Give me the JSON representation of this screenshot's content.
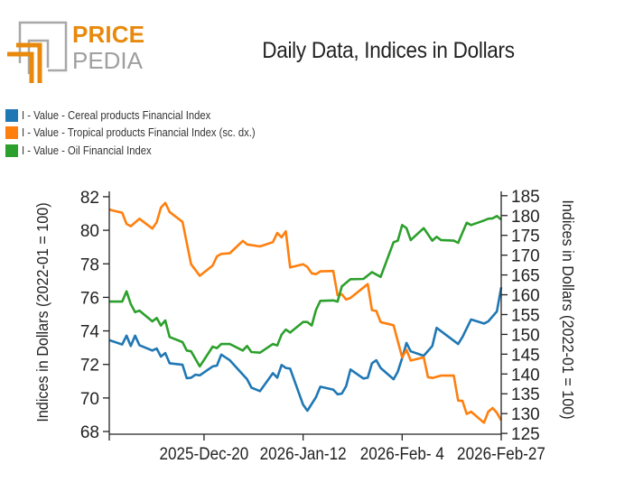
{
  "logo": {
    "text_top": "PRICE",
    "text_bottom": "PEDIA",
    "brand_color": "#E8890C",
    "gray": "#A0A0A0"
  },
  "chart_data": {
    "type": "line",
    "title": "Daily Data, Indices in Dollars",
    "ylabel_left": "Indices in Dollars (2022-01 = 100)",
    "ylabel_right": "Indices in Dollars (2022-01 = 100)",
    "xlabel": "",
    "xlim": [
      "2025-11-28",
      "2026-02-27"
    ],
    "x_ticks": [
      "2025-12-20",
      "2026-01-12",
      "2026-02-04",
      "2026-02-27"
    ],
    "x_tick_labels": [
      "2025-Dec-20",
      "2026-Jan-12",
      "2026-Feb- 4",
      "2026-Feb-27"
    ],
    "ylim_left": [
      67.84,
      82.32
    ],
    "ylim_right": [
      124.8,
      186.1
    ],
    "y_ticks_left": [
      "68",
      "70",
      "72",
      "74",
      "76",
      "78",
      "80",
      "82"
    ],
    "y_ticks_right": [
      "125",
      "130",
      "135",
      "140",
      "145",
      "150",
      "155",
      "160",
      "165",
      "170",
      "175",
      "180",
      "185"
    ],
    "grid": false,
    "legend_position": "top-left",
    "series": [
      {
        "name": "I - Value - Cereal products Financial Index",
        "axis": "left",
        "color": "#1F77B4",
        "points": [
          [
            "2025-11-28",
            73.45
          ],
          [
            "2025-12-01",
            73.19
          ],
          [
            "2025-12-02",
            73.72
          ],
          [
            "2025-12-03",
            73.1
          ],
          [
            "2025-12-04",
            73.72
          ],
          [
            "2025-12-05",
            73.15
          ],
          [
            "2025-12-08",
            72.83
          ],
          [
            "2025-12-09",
            72.95
          ],
          [
            "2025-12-10",
            72.47
          ],
          [
            "2025-12-11",
            72.68
          ],
          [
            "2025-12-12",
            72.07
          ],
          [
            "2025-12-15",
            71.98
          ],
          [
            "2025-12-16",
            71.18
          ],
          [
            "2025-12-17",
            71.21
          ],
          [
            "2025-12-18",
            71.39
          ],
          [
            "2025-12-19",
            71.35
          ],
          [
            "2025-12-22",
            71.88
          ],
          [
            "2025-12-23",
            71.93
          ],
          [
            "2025-12-24",
            72.59
          ],
          [
            "2025-12-26",
            72.25
          ],
          [
            "2025-12-30",
            71.12
          ],
          [
            "2025-12-31",
            70.62
          ],
          [
            "2026-01-02",
            70.41
          ],
          [
            "2026-01-05",
            71.48
          ],
          [
            "2026-01-06",
            71.21
          ],
          [
            "2026-01-07",
            71.97
          ],
          [
            "2026-01-08",
            71.79
          ],
          [
            "2026-01-09",
            71.75
          ],
          [
            "2026-01-12",
            69.6
          ],
          [
            "2026-01-13",
            69.24
          ],
          [
            "2026-01-15",
            70.05
          ],
          [
            "2026-01-16",
            70.67
          ],
          [
            "2026-01-19",
            70.5
          ],
          [
            "2026-01-20",
            70.22
          ],
          [
            "2026-01-21",
            70.26
          ],
          [
            "2026-01-22",
            70.71
          ],
          [
            "2026-01-23",
            71.7
          ],
          [
            "2026-01-26",
            71.16
          ],
          [
            "2026-01-27",
            71.21
          ],
          [
            "2026-01-28",
            72.07
          ],
          [
            "2026-01-29",
            72.25
          ],
          [
            "2026-01-30",
            71.79
          ],
          [
            "2026-02-02",
            71.12
          ],
          [
            "2026-02-03",
            71.57
          ],
          [
            "2026-02-04",
            72.38
          ],
          [
            "2026-02-05",
            73.28
          ],
          [
            "2026-02-06",
            72.78
          ],
          [
            "2026-02-09",
            72.52
          ],
          [
            "2026-02-11",
            73.1
          ],
          [
            "2026-02-12",
            74.18
          ],
          [
            "2026-02-17",
            73.22
          ],
          [
            "2026-02-18",
            73.64
          ],
          [
            "2026-02-20",
            74.68
          ],
          [
            "2026-02-23",
            74.44
          ],
          [
            "2026-02-24",
            74.57
          ],
          [
            "2026-02-26",
            75.16
          ],
          [
            "2026-02-27",
            76.6
          ]
        ]
      },
      {
        "name": "I - Value - Tropical products Financial Index (sc. dx.)",
        "axis": "right",
        "color": "#FF7F0E",
        "points": [
          [
            "2025-11-28",
            181.5
          ],
          [
            "2025-12-01",
            180.7
          ],
          [
            "2025-12-02",
            177.9
          ],
          [
            "2025-12-03",
            177.3
          ],
          [
            "2025-12-05",
            179.2
          ],
          [
            "2025-12-08",
            176.7
          ],
          [
            "2025-12-09",
            178.3
          ],
          [
            "2025-12-10",
            182
          ],
          [
            "2025-12-11",
            183.2
          ],
          [
            "2025-12-12",
            180.9
          ],
          [
            "2025-12-15",
            178.4
          ],
          [
            "2025-12-17",
            167.7
          ],
          [
            "2025-12-19",
            164.8
          ],
          [
            "2025-12-22",
            167.4
          ],
          [
            "2025-12-23",
            169.7
          ],
          [
            "2025-12-24",
            170.3
          ],
          [
            "2025-12-26",
            170.5
          ],
          [
            "2025-12-29",
            173.6
          ],
          [
            "2025-12-30",
            172.7
          ],
          [
            "2026-01-02",
            172.2
          ],
          [
            "2026-01-05",
            173.3
          ],
          [
            "2026-01-06",
            175.6
          ],
          [
            "2026-01-07",
            174.5
          ],
          [
            "2026-01-08",
            176
          ],
          [
            "2026-01-09",
            166.9
          ],
          [
            "2026-01-12",
            167.7
          ],
          [
            "2026-01-13",
            167
          ],
          [
            "2026-01-14",
            165.4
          ],
          [
            "2026-01-15",
            165.2
          ],
          [
            "2026-01-16",
            165.9
          ],
          [
            "2026-01-19",
            166
          ],
          [
            "2026-01-20",
            159.9
          ],
          [
            "2026-01-21",
            160.1
          ],
          [
            "2026-01-22",
            158.8
          ],
          [
            "2026-01-23",
            159.2
          ],
          [
            "2026-01-27",
            162.7
          ],
          [
            "2026-01-28",
            156.1
          ],
          [
            "2026-01-29",
            155.9
          ],
          [
            "2026-01-30",
            153.1
          ],
          [
            "2026-02-02",
            152.3
          ],
          [
            "2026-02-04",
            144.2
          ],
          [
            "2026-02-05",
            146.1
          ],
          [
            "2026-02-06",
            143.4
          ],
          [
            "2026-02-09",
            144.2
          ],
          [
            "2026-02-10",
            139.2
          ],
          [
            "2026-02-11",
            139
          ],
          [
            "2026-02-13",
            139.6
          ],
          [
            "2026-02-16",
            139.6
          ],
          [
            "2026-02-17",
            133.3
          ],
          [
            "2026-02-18",
            133.2
          ],
          [
            "2026-02-19",
            129.9
          ],
          [
            "2026-02-20",
            130.5
          ],
          [
            "2026-02-23",
            127.7
          ],
          [
            "2026-02-24",
            130.5
          ],
          [
            "2026-02-25",
            131.4
          ],
          [
            "2026-02-26",
            130.2
          ],
          [
            "2026-02-27",
            128.3
          ]
        ]
      },
      {
        "name": "I - Value - Oil Financial Index",
        "axis": "left",
        "color": "#2CA02C",
        "points": [
          [
            "2025-11-28",
            75.75
          ],
          [
            "2025-12-01",
            75.75
          ],
          [
            "2025-12-02",
            76.36
          ],
          [
            "2025-12-03",
            75.6
          ],
          [
            "2025-12-04",
            75.12
          ],
          [
            "2025-12-05",
            75.21
          ],
          [
            "2025-12-08",
            74.57
          ],
          [
            "2025-12-09",
            74.77
          ],
          [
            "2025-12-10",
            74.32
          ],
          [
            "2025-12-11",
            74.62
          ],
          [
            "2025-12-12",
            73.64
          ],
          [
            "2025-12-15",
            73.33
          ],
          [
            "2025-12-16",
            72.83
          ],
          [
            "2025-12-17",
            72.78
          ],
          [
            "2025-12-19",
            71.88
          ],
          [
            "2025-12-22",
            73.06
          ],
          [
            "2025-12-23",
            72.97
          ],
          [
            "2025-12-24",
            73.22
          ],
          [
            "2025-12-26",
            73.22
          ],
          [
            "2025-12-29",
            72.83
          ],
          [
            "2025-12-30",
            73.1
          ],
          [
            "2025-12-31",
            72.74
          ],
          [
            "2026-01-02",
            72.7
          ],
          [
            "2026-01-05",
            73.22
          ],
          [
            "2026-01-06",
            73.13
          ],
          [
            "2026-01-07",
            73.78
          ],
          [
            "2026-01-08",
            74.08
          ],
          [
            "2026-01-09",
            73.9
          ],
          [
            "2026-01-12",
            74.53
          ],
          [
            "2026-01-13",
            74.53
          ],
          [
            "2026-01-14",
            74.32
          ],
          [
            "2026-01-15",
            75.25
          ],
          [
            "2026-01-16",
            75.79
          ],
          [
            "2026-01-19",
            75.82
          ],
          [
            "2026-01-20",
            75.75
          ],
          [
            "2026-01-21",
            76.65
          ],
          [
            "2026-01-23",
            77.08
          ],
          [
            "2026-01-26",
            77.1
          ],
          [
            "2026-01-28",
            77.5
          ],
          [
            "2026-01-30",
            77.22
          ],
          [
            "2026-02-02",
            79.29
          ],
          [
            "2026-02-03",
            79.38
          ],
          [
            "2026-02-04",
            80.31
          ],
          [
            "2026-02-05",
            80.13
          ],
          [
            "2026-02-06",
            79.42
          ],
          [
            "2026-02-09",
            80.13
          ],
          [
            "2026-02-11",
            79.38
          ],
          [
            "2026-02-12",
            79.61
          ],
          [
            "2026-02-13",
            79.42
          ],
          [
            "2026-02-16",
            79.38
          ],
          [
            "2026-02-17",
            79.25
          ],
          [
            "2026-02-19",
            80.45
          ],
          [
            "2026-02-20",
            80.31
          ],
          [
            "2026-02-23",
            80.58
          ],
          [
            "2026-02-24",
            80.69
          ],
          [
            "2026-02-25",
            80.71
          ],
          [
            "2026-02-26",
            80.85
          ],
          [
            "2026-02-27",
            80.64
          ]
        ]
      }
    ]
  }
}
